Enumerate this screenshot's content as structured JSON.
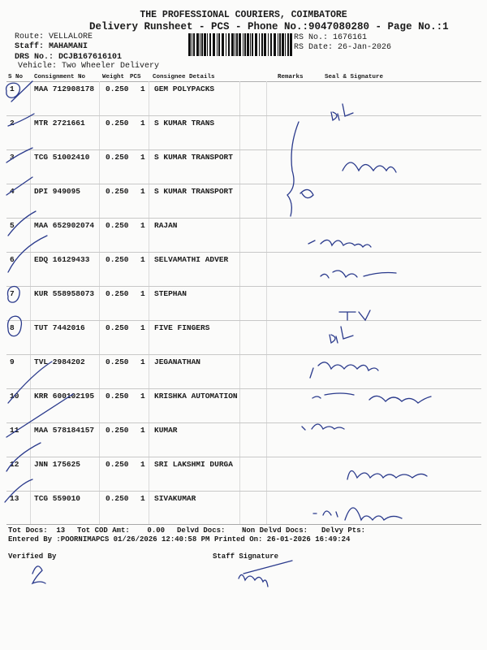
{
  "header": {
    "company": "THE PROFESSIONAL COURIERS, COIMBATORE",
    "subtitle": "Delivery Runsheet - PCS - Phone No.:9047080280 - Page No.:1",
    "route": "Route: VELLALORE",
    "staff": "Staff: MAHAMANI",
    "drs_no": "DRS No.: DCJB167616101",
    "vehicle": "Vehicle: Two Wheeler Delivery",
    "rs_no": "RS No.: 1676161",
    "rs_date": "RS Date: 26-Jan-2026"
  },
  "table": {
    "columns": [
      "S No",
      "Consignment No",
      "Weight",
      "PCS",
      "Consignee Details",
      "Remarks",
      "Seal & Signature"
    ],
    "rows": [
      {
        "sno": "1",
        "consignment": "MAA 712908178",
        "weight": "0.250",
        "pcs": "1",
        "consignee": "GEM POLYPACKS"
      },
      {
        "sno": "2",
        "consignment": "MTR 2721661",
        "weight": "0.250",
        "pcs": "1",
        "consignee": "S KUMAR TRANS"
      },
      {
        "sno": "3",
        "consignment": "TCG 51002410",
        "weight": "0.250",
        "pcs": "1",
        "consignee": "S KUMAR TRANSPORT"
      },
      {
        "sno": "4",
        "consignment": "DPI 949095",
        "weight": "0.250",
        "pcs": "1",
        "consignee": "S KUMAR TRANSPORT"
      },
      {
        "sno": "5",
        "consignment": "MAA 652902074",
        "weight": "0.250",
        "pcs": "1",
        "consignee": "RAJAN"
      },
      {
        "sno": "6",
        "consignment": "EDQ 16129433",
        "weight": "0.250",
        "pcs": "1",
        "consignee": "SELVAMATHI ADVER"
      },
      {
        "sno": "7",
        "consignment": "KUR 558958073",
        "weight": "0.250",
        "pcs": "1",
        "consignee": "STEPHAN"
      },
      {
        "sno": "8",
        "consignment": "TUT 7442016",
        "weight": "0.250",
        "pcs": "1",
        "consignee": "FIVE FINGERS"
      },
      {
        "sno": "9",
        "consignment": "TVL 2984202",
        "weight": "0.250",
        "pcs": "1",
        "consignee": "JEGANATHAN"
      },
      {
        "sno": "10",
        "consignment": "KRR 600102195",
        "weight": "0.250",
        "pcs": "1",
        "consignee": "KRISHKA AUTOMATION"
      },
      {
        "sno": "11",
        "consignment": "MAA 578184157",
        "weight": "0.250",
        "pcs": "1",
        "consignee": "KUMAR"
      },
      {
        "sno": "12",
        "consignment": "JNN 175625",
        "weight": "0.250",
        "pcs": "1",
        "consignee": "SRI LAKSHMI DURGA"
      },
      {
        "sno": "13",
        "consignment": "TCG 559010",
        "weight": "0.250",
        "pcs": "1",
        "consignee": "SIVAKUMAR"
      }
    ]
  },
  "footer": {
    "tot_docs": "Tot Docs:  13",
    "tot_cod": "Tot COD Amt:    0.00",
    "delvd_docs": "Delvd Docs:",
    "non_delvd_docs": "Non Delvd Docs:",
    "delvy_pts": "Delvy Pts:",
    "entered_by": "Entered By :POORNIMAPCS 01/26/2026 12:40:58 PM",
    "printed_on": "Printed On: 26-01-2026 16:49:24",
    "verified_by": "Verified By",
    "staff_signature": "Staff Signature"
  },
  "colors": {
    "ink": "#2a3a8c",
    "text": "#1a1a1a"
  }
}
